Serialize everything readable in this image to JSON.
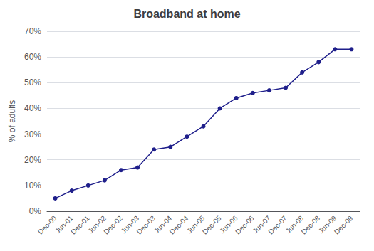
{
  "chart_data": {
    "type": "line",
    "title": "Broadband at home",
    "ylabel": "% of adults",
    "categories": [
      "Dec-00",
      "Jun-01",
      "Dec-01",
      "Jun-02",
      "Dec-02",
      "Jun-03",
      "Dec-03",
      "Jun-04",
      "Dec-04",
      "Jun-05",
      "Dec-05",
      "Jun-06",
      "Dec-06",
      "Jun-07",
      "Dec-07",
      "Jun-08",
      "Dec-08",
      "Jun-09",
      "Dec-09"
    ],
    "values": [
      5,
      8,
      10,
      12,
      16,
      17,
      24,
      25,
      29,
      33,
      40,
      44,
      46,
      47,
      48,
      54,
      58,
      63,
      63
    ],
    "color": "#1F1F8B",
    "marker": "circle",
    "ylim": [
      0,
      70
    ],
    "yticks": [
      {
        "value": 0,
        "label": "0%"
      },
      {
        "value": 10,
        "label": "10%"
      },
      {
        "value": 20,
        "label": "20%"
      },
      {
        "value": 30,
        "label": "30%"
      },
      {
        "value": 40,
        "label": "40%"
      },
      {
        "value": 50,
        "label": "50%"
      },
      {
        "value": 60,
        "label": "60%"
      },
      {
        "value": 70,
        "label": "70%"
      }
    ],
    "grid": true
  }
}
